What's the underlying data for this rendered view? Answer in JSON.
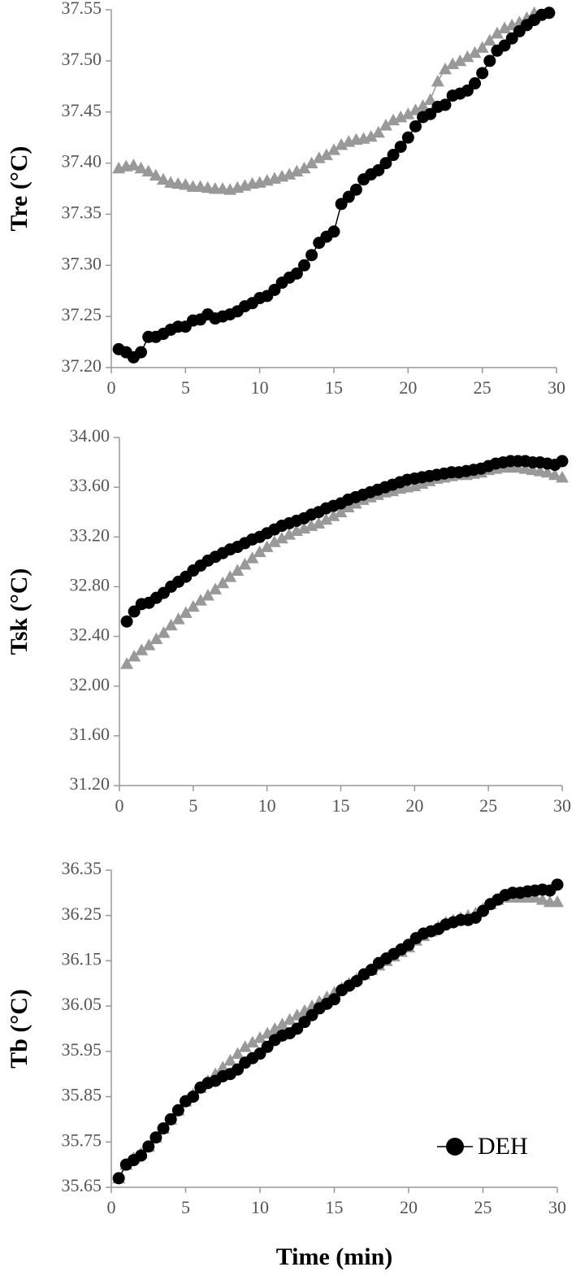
{
  "chart_data": [
    {
      "type": "line",
      "ylabel": "Tre (°C)",
      "x": [
        0.5,
        1,
        1.5,
        2,
        2.5,
        3,
        3.5,
        4,
        4.5,
        5,
        5.5,
        6,
        6.5,
        7,
        7.5,
        8,
        8.5,
        9,
        9.5,
        10,
        10.5,
        11,
        11.5,
        12,
        12.5,
        13,
        13.5,
        14,
        14.5,
        15,
        15.5,
        16,
        16.5,
        17,
        17.5,
        18,
        18.5,
        19,
        19.5,
        20,
        20.5,
        21,
        21.5,
        22,
        22.5,
        23,
        23.5,
        24,
        24.5,
        25,
        25.5,
        26,
        26.5,
        27,
        27.5,
        28,
        28.5,
        29,
        29.5,
        30
      ],
      "series": [
        {
          "name": "DEH",
          "color": "#000000",
          "marker": "circle",
          "values": [
            37.218,
            37.215,
            37.21,
            37.215,
            37.23,
            37.23,
            37.233,
            37.237,
            37.24,
            37.24,
            37.246,
            37.247,
            37.252,
            37.248,
            37.25,
            37.252,
            37.255,
            37.26,
            37.263,
            37.268,
            37.27,
            37.276,
            37.283,
            37.288,
            37.292,
            37.3,
            37.31,
            37.322,
            37.328,
            37.333,
            37.36,
            37.367,
            37.374,
            37.384,
            37.389,
            37.393,
            37.4,
            37.408,
            37.416,
            37.425,
            37.436,
            37.445,
            37.448,
            37.455,
            37.457,
            37.466,
            37.468,
            37.471,
            37.478,
            37.488,
            37.5,
            37.51,
            37.515,
            37.522,
            37.529,
            37.535,
            37.54,
            37.545,
            37.547,
            null
          ]
        },
        {
          "color": "#999999",
          "marker": "triangle",
          "values": [
            37.395,
            37.397,
            37.398,
            37.395,
            37.392,
            37.388,
            37.384,
            37.381,
            37.38,
            37.379,
            37.377,
            37.377,
            37.376,
            37.375,
            37.375,
            37.374,
            37.376,
            37.378,
            37.38,
            37.381,
            37.383,
            37.385,
            37.387,
            37.389,
            37.392,
            37.395,
            37.4,
            37.405,
            37.408,
            37.413,
            37.418,
            37.421,
            37.423,
            37.424,
            37.426,
            37.43,
            37.437,
            37.442,
            37.445,
            37.448,
            37.452,
            37.456,
            37.462,
            37.48,
            37.492,
            37.497,
            37.5,
            37.504,
            37.508,
            37.513,
            37.52,
            37.527,
            37.532,
            37.535,
            37.538,
            37.542,
            37.547,
            null,
            null,
            null
          ]
        }
      ],
      "xlim": [
        0,
        30
      ],
      "xticks": [
        0,
        5,
        10,
        15,
        20,
        25,
        30
      ],
      "ylim": [
        37.2,
        37.55
      ],
      "yticks": [
        {
          "value": 37.2,
          "label": "37.20"
        },
        {
          "value": 37.25,
          "label": "37.25"
        },
        {
          "value": 37.3,
          "label": "37.30"
        },
        {
          "value": 37.35,
          "label": "37.35"
        },
        {
          "value": 37.4,
          "label": "37.40"
        },
        {
          "value": 37.45,
          "label": "37.45"
        },
        {
          "value": 37.5,
          "label": "37.50"
        },
        {
          "value": 37.55,
          "label": "37.55"
        }
      ],
      "grid": false
    },
    {
      "type": "line",
      "ylabel": "Tsk (°C)",
      "x": [
        0.5,
        1,
        1.5,
        2,
        2.5,
        3,
        3.5,
        4,
        4.5,
        5,
        5.5,
        6,
        6.5,
        7,
        7.5,
        8,
        8.5,
        9,
        9.5,
        10,
        10.5,
        11,
        11.5,
        12,
        12.5,
        13,
        13.5,
        14,
        14.5,
        15,
        15.5,
        16,
        16.5,
        17,
        17.5,
        18,
        18.5,
        19,
        19.5,
        20,
        20.5,
        21,
        21.5,
        22,
        22.5,
        23,
        23.5,
        24,
        24.5,
        25,
        25.5,
        26,
        26.5,
        27,
        27.5,
        28,
        28.5,
        29,
        29.5,
        30
      ],
      "series": [
        {
          "name": "DEH",
          "color": "#000000",
          "marker": "circle",
          "values": [
            32.52,
            32.6,
            32.66,
            32.67,
            32.71,
            32.75,
            32.8,
            32.84,
            32.88,
            32.93,
            32.97,
            33.01,
            33.04,
            33.07,
            33.1,
            33.12,
            33.15,
            33.18,
            33.2,
            33.23,
            33.26,
            33.29,
            33.31,
            33.33,
            33.35,
            33.38,
            33.4,
            33.43,
            33.45,
            33.47,
            33.5,
            33.52,
            33.54,
            33.56,
            33.58,
            33.6,
            33.62,
            33.64,
            33.66,
            33.67,
            33.68,
            33.69,
            33.7,
            33.71,
            33.72,
            33.72,
            33.73,
            33.74,
            33.75,
            33.77,
            33.79,
            33.8,
            33.81,
            33.81,
            33.81,
            33.8,
            33.8,
            33.79,
            33.78,
            33.81
          ]
        },
        {
          "color": "#999999",
          "marker": "triangle",
          "values": [
            32.18,
            32.24,
            32.29,
            32.33,
            32.38,
            32.43,
            32.49,
            32.54,
            32.59,
            32.64,
            32.69,
            32.73,
            32.78,
            32.83,
            32.88,
            32.93,
            32.98,
            33.03,
            33.08,
            33.12,
            33.16,
            33.19,
            33.22,
            33.25,
            33.27,
            33.29,
            33.31,
            33.34,
            33.37,
            33.4,
            33.44,
            33.47,
            33.5,
            33.52,
            33.54,
            33.56,
            33.57,
            33.59,
            33.6,
            33.61,
            33.63,
            33.65,
            33.67,
            33.68,
            33.69,
            33.7,
            33.7,
            33.71,
            33.72,
            33.74,
            33.75,
            33.76,
            33.76,
            33.76,
            33.75,
            33.74,
            33.73,
            33.72,
            33.7,
            33.68
          ]
        }
      ],
      "xlim": [
        0,
        30
      ],
      "xticks": [
        0,
        5,
        10,
        15,
        20,
        25,
        30
      ],
      "ylim": [
        31.2,
        34.0
      ],
      "yticks": [
        {
          "value": 31.2,
          "label": "31.20"
        },
        {
          "value": 31.6,
          "label": "31.60"
        },
        {
          "value": 32.0,
          "label": "32.00"
        },
        {
          "value": 32.4,
          "label": "32.40"
        },
        {
          "value": 32.8,
          "label": "32.80"
        },
        {
          "value": 33.2,
          "label": "33.20"
        },
        {
          "value": 33.6,
          "label": "33.60"
        },
        {
          "value": 34.0,
          "label": "34.00"
        }
      ],
      "grid": false
    },
    {
      "type": "line",
      "ylabel": "Tb (°C)",
      "xlabel": "Time (min)",
      "legend": "lower right",
      "x": [
        0.5,
        1,
        1.5,
        2,
        2.5,
        3,
        3.5,
        4,
        4.5,
        5,
        5.5,
        6,
        6.5,
        7,
        7.5,
        8,
        8.5,
        9,
        9.5,
        10,
        10.5,
        11,
        11.5,
        12,
        12.5,
        13,
        13.5,
        14,
        14.5,
        15,
        15.5,
        16,
        16.5,
        17,
        17.5,
        18,
        18.5,
        19,
        19.5,
        20,
        20.5,
        21,
        21.5,
        22,
        22.5,
        23,
        23.5,
        24,
        24.5,
        25,
        25.5,
        26,
        26.5,
        27,
        27.5,
        28,
        28.5,
        29,
        29.5,
        30
      ],
      "series": [
        {
          "name": "DEH",
          "color": "#000000",
          "marker": "circle",
          "values": [
            35.67,
            35.7,
            35.71,
            35.72,
            35.74,
            35.76,
            35.78,
            35.8,
            35.82,
            35.84,
            35.85,
            35.87,
            35.88,
            35.885,
            35.895,
            35.9,
            35.91,
            35.925,
            35.935,
            35.945,
            35.96,
            35.975,
            35.985,
            35.99,
            36.0,
            36.015,
            36.03,
            36.045,
            36.055,
            36.065,
            36.085,
            36.095,
            36.105,
            36.12,
            36.13,
            36.145,
            36.155,
            36.165,
            36.175,
            36.185,
            36.2,
            36.21,
            36.215,
            36.22,
            36.23,
            36.235,
            36.24,
            36.24,
            36.245,
            36.26,
            36.275,
            36.285,
            36.295,
            36.3,
            36.3,
            36.303,
            36.305,
            36.307,
            36.305,
            36.318
          ]
        },
        {
          "color": "#999999",
          "marker": "triangle",
          "values": [
            35.67,
            35.7,
            35.715,
            35.725,
            35.74,
            35.76,
            35.78,
            35.8,
            35.82,
            35.84,
            35.855,
            35.87,
            35.885,
            35.9,
            35.915,
            35.93,
            35.945,
            35.96,
            35.97,
            35.98,
            35.99,
            36.0,
            36.01,
            36.02,
            36.03,
            36.04,
            36.05,
            36.06,
            36.07,
            36.08,
            36.09,
            36.1,
            36.11,
            36.12,
            36.13,
            36.14,
            36.15,
            36.16,
            36.17,
            36.18,
            36.195,
            36.205,
            36.215,
            36.225,
            36.235,
            36.24,
            36.245,
            36.25,
            36.255,
            36.265,
            36.275,
            36.285,
            36.29,
            36.29,
            36.29,
            36.29,
            36.29,
            36.285,
            36.28,
            36.28
          ]
        }
      ],
      "xlim": [
        0,
        30
      ],
      "xticks": [
        0,
        5,
        10,
        15,
        20,
        25,
        30
      ],
      "ylim": [
        35.65,
        36.35
      ],
      "yticks": [
        {
          "value": 35.65,
          "label": "35.65"
        },
        {
          "value": 35.75,
          "label": "35.75"
        },
        {
          "value": 35.85,
          "label": "35.85"
        },
        {
          "value": 35.95,
          "label": "35.95"
        },
        {
          "value": 36.05,
          "label": "36.05"
        },
        {
          "value": 36.15,
          "label": "36.15"
        },
        {
          "value": 36.25,
          "label": "36.25"
        },
        {
          "value": 36.35,
          "label": "36.35"
        }
      ],
      "grid": false
    }
  ]
}
